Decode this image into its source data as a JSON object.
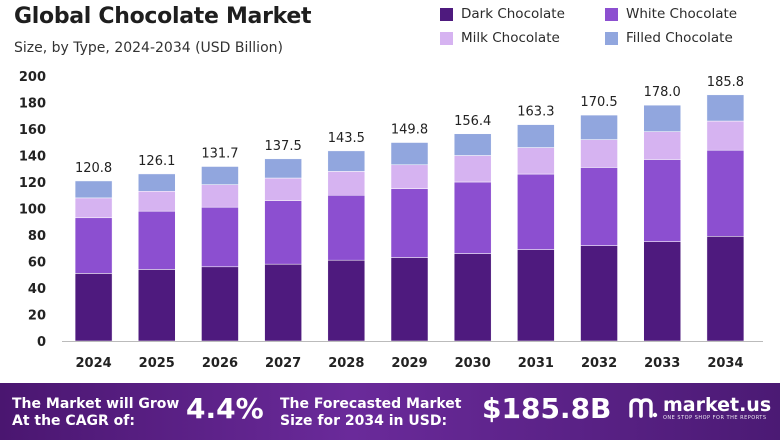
{
  "colors": {
    "dark": "#4e1a7e",
    "white": "#8c4fd0",
    "milk": "#d6b3f1",
    "filled": "#91a6de",
    "axis": "#222222",
    "banner": "#5a1e86"
  },
  "header": {
    "title": "Global Chocolate Market",
    "subtitle": "Size, by Type, 2024-2034 (USD Billion)"
  },
  "legend": [
    {
      "label": "Dark Chocolate",
      "color": "#4e1a7e"
    },
    {
      "label": "White Chocolate",
      "color": "#8c4fd0"
    },
    {
      "label": "Milk Chocolate",
      "color": "#d6b3f1"
    },
    {
      "label": "Filled Chocolate",
      "color": "#91a6de"
    }
  ],
  "chart_data": {
    "type": "bar",
    "stacked": true,
    "title": "Global Chocolate Market",
    "subtitle": "Size, by Type, 2024-2034 (USD Billion)",
    "categories": [
      "2024",
      "2025",
      "2026",
      "2027",
      "2028",
      "2029",
      "2030",
      "2031",
      "2032",
      "2033",
      "2034"
    ],
    "series": [
      {
        "name": "Dark Chocolate",
        "color": "#4e1a7e",
        "values": [
          51,
          54,
          56,
          58,
          61,
          63,
          66,
          69,
          72,
          75,
          79
        ]
      },
      {
        "name": "White Chocolate",
        "color": "#8c4fd0",
        "values": [
          42,
          44,
          45,
          48,
          49,
          52,
          54,
          57,
          59,
          62,
          65
        ]
      },
      {
        "name": "Milk Chocolate",
        "color": "#d6b3f1",
        "values": [
          15,
          15,
          17,
          17,
          18,
          18,
          20,
          20,
          21,
          21,
          22
        ]
      },
      {
        "name": "Filled Chocolate",
        "color": "#91a6de",
        "values": [
          12.8,
          13.1,
          13.7,
          14.5,
          15.5,
          16.8,
          16.4,
          17.3,
          18.5,
          20.0,
          19.8
        ]
      }
    ],
    "totals": [
      "120.8",
      "126.1",
      "131.7",
      "137.5",
      "143.5",
      "149.8",
      "156.4",
      "163.3",
      "170.5",
      "178.0",
      "185.8"
    ],
    "yticks": [
      "0",
      "20",
      "40",
      "60",
      "80",
      "100",
      "120",
      "140",
      "160",
      "180",
      "200"
    ],
    "ylim": [
      0,
      200
    ],
    "grid": false,
    "legend_position": "top-right"
  },
  "banner": {
    "cagr_text_1": "The Market will Grow",
    "cagr_text_2": "At the CAGR of:",
    "cagr_value": "4.4%",
    "forecast_text_1": "The Forecasted Market",
    "forecast_text_2": "Size for 2034 in USD:",
    "forecast_value": "$185.8B",
    "brand_name": "market.us",
    "brand_tagline": "ONE STOP SHOP FOR THE REPORTS"
  }
}
